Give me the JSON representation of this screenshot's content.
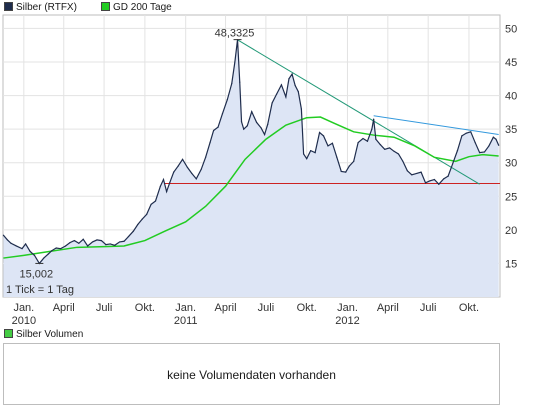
{
  "legend": {
    "series1": {
      "label": "Silber (RTFX)",
      "color": "#1f2d4d"
    },
    "series2": {
      "label": "GD 200 Tage",
      "color": "#22cc22"
    }
  },
  "volume": {
    "legend_label": "Silber Volumen",
    "legend_color": "#44cc44",
    "message": "keine Volumendaten vorhanden"
  },
  "chart_data": {
    "type": "line",
    "title": "",
    "xlabel": "",
    "ylabel": "",
    "x_range": [
      "2009-11-15",
      "2012-12-10"
    ],
    "ylim": [
      10,
      52
    ],
    "y_ticks": [
      15,
      20,
      25,
      30,
      35,
      40,
      45,
      50
    ],
    "x_ticks": [
      {
        "date": "2010-01-01",
        "label": "Jan.",
        "year": "2010"
      },
      {
        "date": "2010-04-01",
        "label": "April",
        "year": ""
      },
      {
        "date": "2010-07-01",
        "label": "Juli",
        "year": ""
      },
      {
        "date": "2010-10-01",
        "label": "Okt.",
        "year": ""
      },
      {
        "date": "2011-01-01",
        "label": "Jan.",
        "year": "2011"
      },
      {
        "date": "2011-04-01",
        "label": "April",
        "year": ""
      },
      {
        "date": "2011-07-01",
        "label": "Juli",
        "year": ""
      },
      {
        "date": "2011-10-01",
        "label": "Okt.",
        "year": ""
      },
      {
        "date": "2012-01-01",
        "label": "Jan.",
        "year": "2012"
      },
      {
        "date": "2012-04-01",
        "label": "April",
        "year": ""
      },
      {
        "date": "2012-07-01",
        "label": "Juli",
        "year": ""
      },
      {
        "date": "2012-10-01",
        "label": "Okt.",
        "year": ""
      }
    ],
    "grid": true,
    "legend_position": "top-left",
    "tick_note": "1 Tick = 1 Tag",
    "series": [
      {
        "name": "Silber (RTFX)",
        "color": "#1f2d4d",
        "fill": "#dde5f5",
        "points": [
          [
            "2009-11-16",
            19.2
          ],
          [
            "2009-11-25",
            18.5
          ],
          [
            "2009-12-03",
            18.0
          ],
          [
            "2009-12-15",
            17.6
          ],
          [
            "2009-12-28",
            17.2
          ],
          [
            "2010-01-05",
            17.9
          ],
          [
            "2010-01-15",
            16.8
          ],
          [
            "2010-01-25",
            16.2
          ],
          [
            "2010-02-05",
            15.0
          ],
          [
            "2010-02-15",
            15.8
          ],
          [
            "2010-02-25",
            16.4
          ],
          [
            "2010-03-05",
            16.9
          ],
          [
            "2010-03-15",
            17.3
          ],
          [
            "2010-03-25",
            17.2
          ],
          [
            "2010-04-05",
            17.6
          ],
          [
            "2010-04-15",
            18.1
          ],
          [
            "2010-04-25",
            18.4
          ],
          [
            "2010-05-05",
            18.0
          ],
          [
            "2010-05-15",
            18.6
          ],
          [
            "2010-05-25",
            17.6
          ],
          [
            "2010-06-05",
            18.2
          ],
          [
            "2010-06-15",
            18.5
          ],
          [
            "2010-06-25",
            18.4
          ],
          [
            "2010-07-05",
            17.8
          ],
          [
            "2010-07-15",
            17.9
          ],
          [
            "2010-07-25",
            17.7
          ],
          [
            "2010-08-05",
            18.2
          ],
          [
            "2010-08-15",
            18.3
          ],
          [
            "2010-08-25",
            19.0
          ],
          [
            "2010-09-05",
            19.8
          ],
          [
            "2010-09-15",
            20.8
          ],
          [
            "2010-09-25",
            21.6
          ],
          [
            "2010-10-05",
            22.3
          ],
          [
            "2010-10-15",
            23.8
          ],
          [
            "2010-10-25",
            24.3
          ],
          [
            "2010-11-05",
            26.5
          ],
          [
            "2010-11-12",
            27.5
          ],
          [
            "2010-11-19",
            25.7
          ],
          [
            "2010-11-26",
            27.0
          ],
          [
            "2010-12-05",
            28.6
          ],
          [
            "2010-12-15",
            29.5
          ],
          [
            "2010-12-25",
            30.5
          ],
          [
            "2011-01-05",
            29.3
          ],
          [
            "2011-01-15",
            28.4
          ],
          [
            "2011-01-25",
            27.6
          ],
          [
            "2011-02-05",
            29.0
          ],
          [
            "2011-02-15",
            30.8
          ],
          [
            "2011-02-25",
            33.0
          ],
          [
            "2011-03-05",
            34.8
          ],
          [
            "2011-03-15",
            35.3
          ],
          [
            "2011-03-25",
            37.3
          ],
          [
            "2011-04-05",
            39.4
          ],
          [
            "2011-04-15",
            41.8
          ],
          [
            "2011-04-22",
            45.0
          ],
          [
            "2011-04-28",
            48.3325
          ],
          [
            "2011-05-03",
            42.0
          ],
          [
            "2011-05-07",
            36.1
          ],
          [
            "2011-05-12",
            35.0
          ],
          [
            "2011-05-20",
            35.5
          ],
          [
            "2011-05-30",
            37.6
          ],
          [
            "2011-06-10",
            36.0
          ],
          [
            "2011-06-20",
            35.2
          ],
          [
            "2011-06-28",
            34.2
          ],
          [
            "2011-07-05",
            35.7
          ],
          [
            "2011-07-15",
            38.9
          ],
          [
            "2011-07-25",
            40.2
          ],
          [
            "2011-08-05",
            41.6
          ],
          [
            "2011-08-15",
            39.8
          ],
          [
            "2011-08-22",
            42.5
          ],
          [
            "2011-08-29",
            43.2
          ],
          [
            "2011-09-05",
            41.5
          ],
          [
            "2011-09-12",
            40.6
          ],
          [
            "2011-09-19",
            38.0
          ],
          [
            "2011-09-24",
            31.3
          ],
          [
            "2011-10-01",
            30.6
          ],
          [
            "2011-10-10",
            31.8
          ],
          [
            "2011-10-20",
            31.5
          ],
          [
            "2011-10-30",
            34.5
          ],
          [
            "2011-11-08",
            34.0
          ],
          [
            "2011-11-18",
            32.5
          ],
          [
            "2011-11-28",
            32.9
          ],
          [
            "2011-12-08",
            30.8
          ],
          [
            "2011-12-18",
            28.7
          ],
          [
            "2011-12-28",
            28.6
          ],
          [
            "2012-01-05",
            29.5
          ],
          [
            "2012-01-15",
            30.2
          ],
          [
            "2012-01-25",
            33.0
          ],
          [
            "2012-02-05",
            33.6
          ],
          [
            "2012-02-15",
            33.2
          ],
          [
            "2012-02-25",
            35.0
          ],
          [
            "2012-02-29",
            36.5
          ],
          [
            "2012-03-05",
            33.5
          ],
          [
            "2012-03-15",
            32.7
          ],
          [
            "2012-03-25",
            32.0
          ],
          [
            "2012-04-05",
            32.2
          ],
          [
            "2012-04-15",
            31.7
          ],
          [
            "2012-04-25",
            31.3
          ],
          [
            "2012-05-05",
            30.2
          ],
          [
            "2012-05-15",
            28.8
          ],
          [
            "2012-05-25",
            28.2
          ],
          [
            "2012-06-05",
            28.4
          ],
          [
            "2012-06-15",
            28.6
          ],
          [
            "2012-06-25",
            27.0
          ],
          [
            "2012-07-05",
            27.3
          ],
          [
            "2012-07-15",
            27.5
          ],
          [
            "2012-07-25",
            26.8
          ],
          [
            "2012-08-05",
            27.6
          ],
          [
            "2012-08-15",
            28.0
          ],
          [
            "2012-08-25",
            29.8
          ],
          [
            "2012-09-05",
            31.8
          ],
          [
            "2012-09-15",
            34.0
          ],
          [
            "2012-09-25",
            34.4
          ],
          [
            "2012-10-05",
            34.6
          ],
          [
            "2012-10-15",
            33.0
          ],
          [
            "2012-10-25",
            31.5
          ],
          [
            "2012-11-05",
            31.6
          ],
          [
            "2012-11-15",
            32.5
          ],
          [
            "2012-11-25",
            33.8
          ],
          [
            "2012-12-01",
            33.5
          ],
          [
            "2012-12-07",
            32.6
          ]
        ]
      },
      {
        "name": "GD 200 Tage",
        "color": "#22cc22",
        "points": [
          [
            "2009-11-16",
            15.8
          ],
          [
            "2010-01-01",
            16.2
          ],
          [
            "2010-03-01",
            16.8
          ],
          [
            "2010-05-01",
            17.4
          ],
          [
            "2010-07-01",
            17.5
          ],
          [
            "2010-08-15",
            17.6
          ],
          [
            "2010-10-01",
            18.4
          ],
          [
            "2010-11-15",
            19.8
          ],
          [
            "2011-01-01",
            21.2
          ],
          [
            "2011-02-15",
            23.5
          ],
          [
            "2011-04-01",
            26.5
          ],
          [
            "2011-05-15",
            30.5
          ],
          [
            "2011-07-01",
            33.5
          ],
          [
            "2011-08-15",
            35.6
          ],
          [
            "2011-10-01",
            36.7
          ],
          [
            "2011-11-01",
            36.8
          ],
          [
            "2011-12-01",
            35.9
          ],
          [
            "2012-01-15",
            34.6
          ],
          [
            "2012-03-01",
            34.1
          ],
          [
            "2012-04-15",
            33.8
          ],
          [
            "2012-06-01",
            32.5
          ],
          [
            "2012-07-15",
            30.8
          ],
          [
            "2012-09-01",
            30.2
          ],
          [
            "2012-10-01",
            30.9
          ],
          [
            "2012-11-01",
            31.2
          ],
          [
            "2012-12-07",
            31.0
          ]
        ]
      }
    ],
    "annotations": [
      {
        "kind": "label",
        "text": "48,3325",
        "x": "2011-04-28",
        "y": 48.3325
      },
      {
        "kind": "label",
        "text": "15,002",
        "x": "2010-02-05",
        "y": 15.0
      }
    ],
    "trendlines": [
      {
        "color": "#cc2222",
        "from": [
          "2010-11-15",
          26.9
        ],
        "to": [
          "2012-12-10",
          26.9
        ]
      },
      {
        "color": "#229977",
        "from": [
          "2011-04-28",
          48.3
        ],
        "to": [
          "2012-10-25",
          26.8
        ]
      },
      {
        "color": "#3399dd",
        "from": [
          "2012-02-29",
          37.0
        ],
        "to": [
          "2012-12-07",
          34.2
        ]
      }
    ]
  }
}
